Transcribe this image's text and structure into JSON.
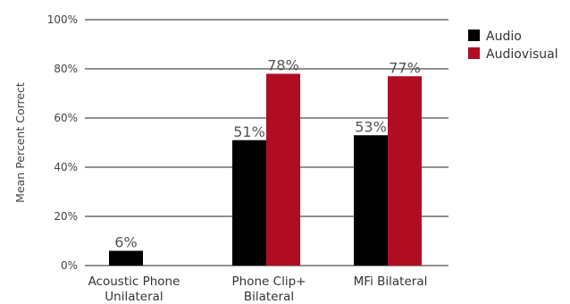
{
  "chart_data": {
    "type": "bar",
    "ylabel": "Mean Percent Correct",
    "xlabel": "",
    "ylim": [
      0,
      100
    ],
    "y_ticks": [
      0,
      20,
      40,
      60,
      80,
      100
    ],
    "y_tick_labels": [
      "0%",
      "20%",
      "40%",
      "60%",
      "80%",
      "100%"
    ],
    "grid": true,
    "legend_position": "top-right",
    "categories": [
      [
        "Acoustic Phone",
        "Unilateral"
      ],
      [
        "Phone Clip+",
        "Bilateral"
      ],
      [
        "MFi Bilateral"
      ]
    ],
    "series": [
      {
        "name": "Audio",
        "color": "#000000",
        "values": [
          6,
          51,
          53
        ],
        "labels": [
          "6%",
          "51%",
          "53%"
        ]
      },
      {
        "name": "Audiovisual",
        "color": "#b00d23",
        "values": [
          null,
          78,
          77
        ],
        "labels": [
          null,
          "78%",
          "77%"
        ]
      }
    ]
  }
}
